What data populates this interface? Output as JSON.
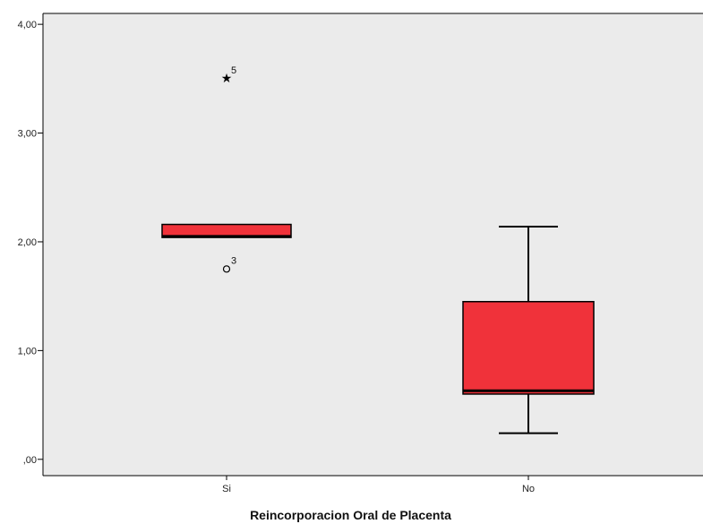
{
  "chart_data": {
    "type": "boxplot",
    "title": "",
    "xlabel": "Reincorporacion Oral de Placenta",
    "ylabel": "",
    "ylim": [
      -0.15,
      4.1
    ],
    "yticks": [
      0,
      1,
      2,
      3,
      4
    ],
    "ytick_labels": [
      ",00",
      "1,00",
      "2,00",
      "3,00",
      "4,00"
    ],
    "categories": [
      "Si",
      "No"
    ],
    "grid": false,
    "legend": "none",
    "colors": {
      "plot_background": "#ebebeb",
      "box_fill": "#f0323a",
      "stroke": "#000000"
    },
    "boxes": [
      {
        "category": "Si",
        "whisker_low": 2.04,
        "q1": 2.04,
        "median": 2.05,
        "q3": 2.16,
        "whisker_high": 2.16,
        "outliers": [
          {
            "value": 3.5,
            "symbol": "star",
            "label": "5"
          },
          {
            "value": 1.75,
            "symbol": "circle",
            "label": "3"
          }
        ]
      },
      {
        "category": "No",
        "whisker_low": 0.24,
        "q1": 0.6,
        "median": 0.63,
        "q3": 1.45,
        "whisker_high": 2.14,
        "outliers": []
      }
    ]
  }
}
